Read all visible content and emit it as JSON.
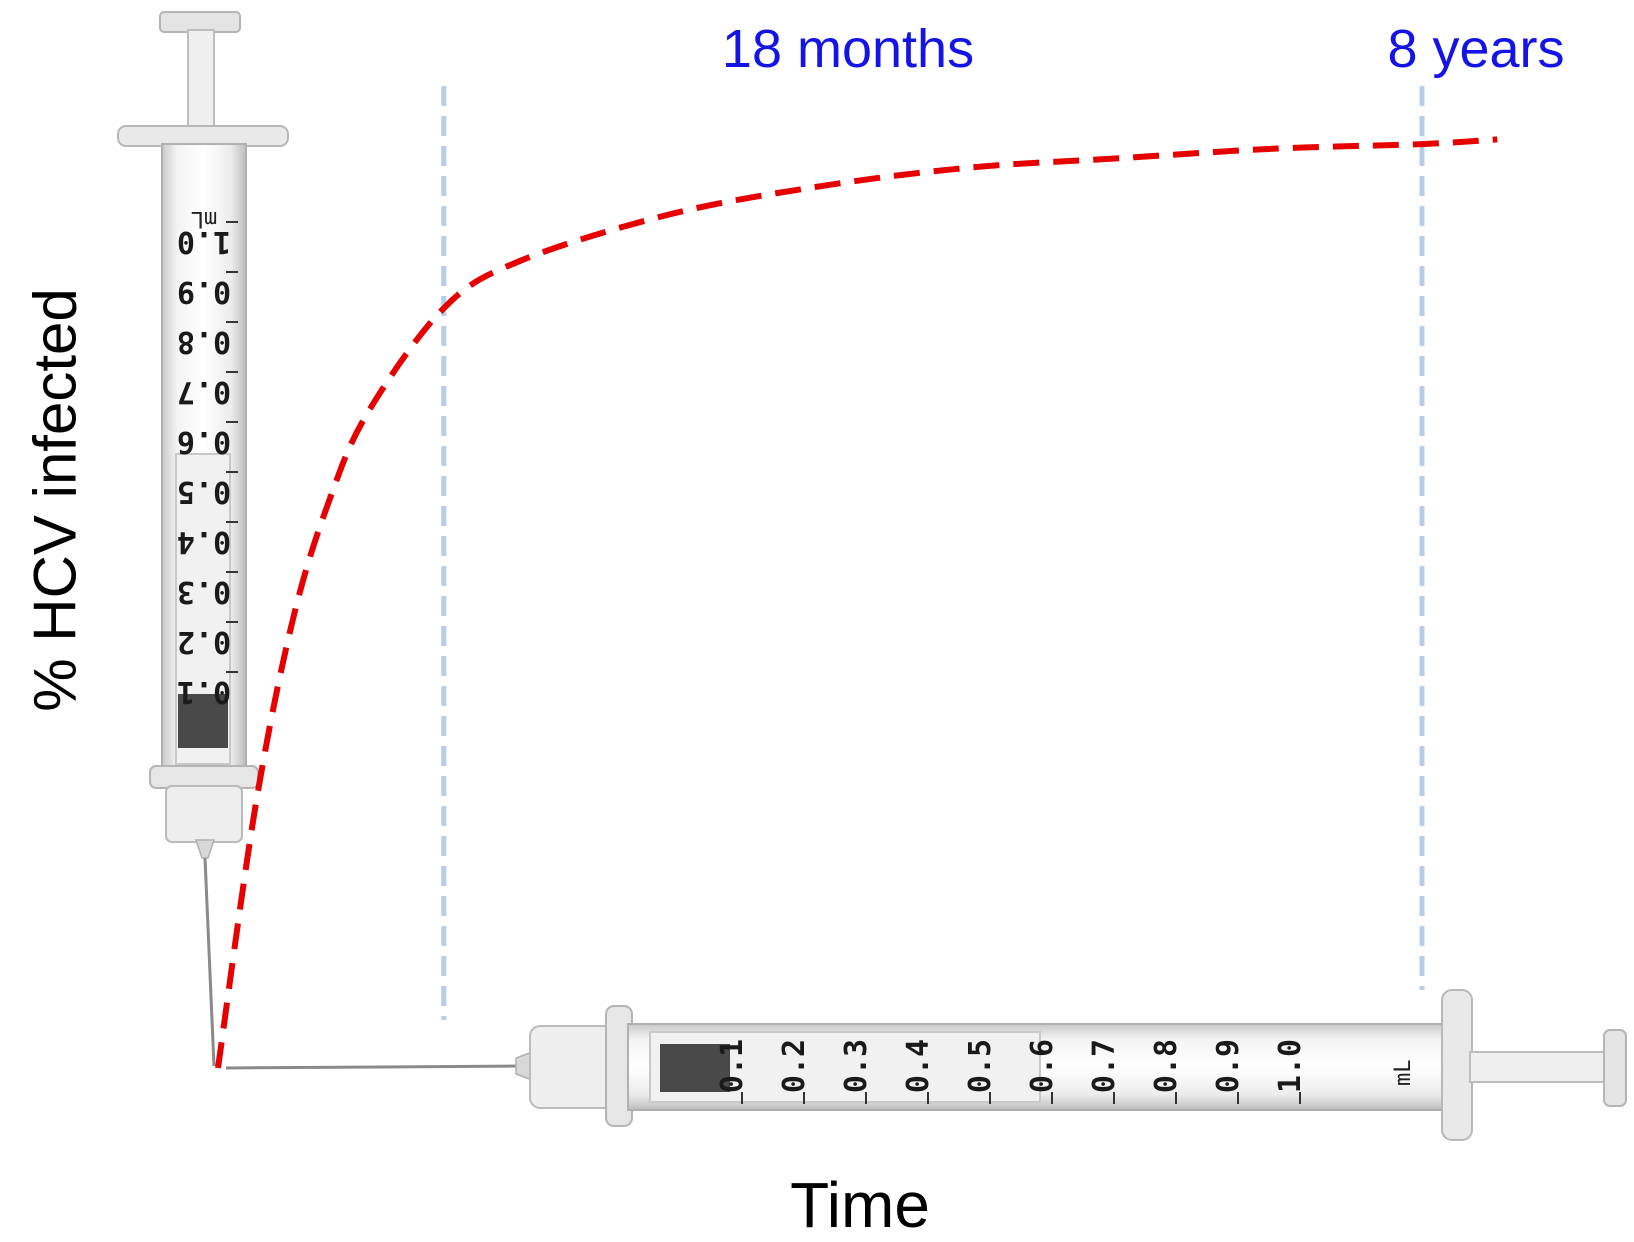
{
  "chart_data": {
    "type": "line",
    "title": "",
    "xlabel": "Time",
    "ylabel": "% HCV infected",
    "x_ticks_shown": false,
    "y_ticks_shown": false,
    "grid": false,
    "series": [
      {
        "style": "dashed",
        "color": "#e60000",
        "shape": "saturating curve rising steeply from origin and leveling off",
        "x_months": [
          0,
          3,
          6,
          9,
          12,
          18,
          24,
          36,
          48,
          60,
          72,
          84,
          96,
          102
        ],
        "y_relative": [
          0.0,
          0.28,
          0.48,
          0.61,
          0.7,
          0.81,
          0.86,
          0.91,
          0.94,
          0.96,
          0.97,
          0.98,
          0.985,
          0.99
        ]
      }
    ],
    "annotations": [
      {
        "label": "18 months",
        "x_months": 18,
        "style": "dashed vertical line",
        "color": "#1414e6",
        "line_color": "#b7cde6"
      },
      {
        "label": "8 years",
        "x_months": 96,
        "style": "dashed vertical line",
        "color": "#1414e6",
        "line_color": "#b7cde6"
      }
    ],
    "decorations": {
      "y_axis": "syringe",
      "x_axis": "syringe",
      "scale_markings": [
        "0.1",
        "0.2",
        "0.3",
        "0.4",
        "0.5",
        "0.6",
        "0.7",
        "0.8",
        "0.9",
        "1.0"
      ],
      "scale_unit": "mL"
    }
  }
}
